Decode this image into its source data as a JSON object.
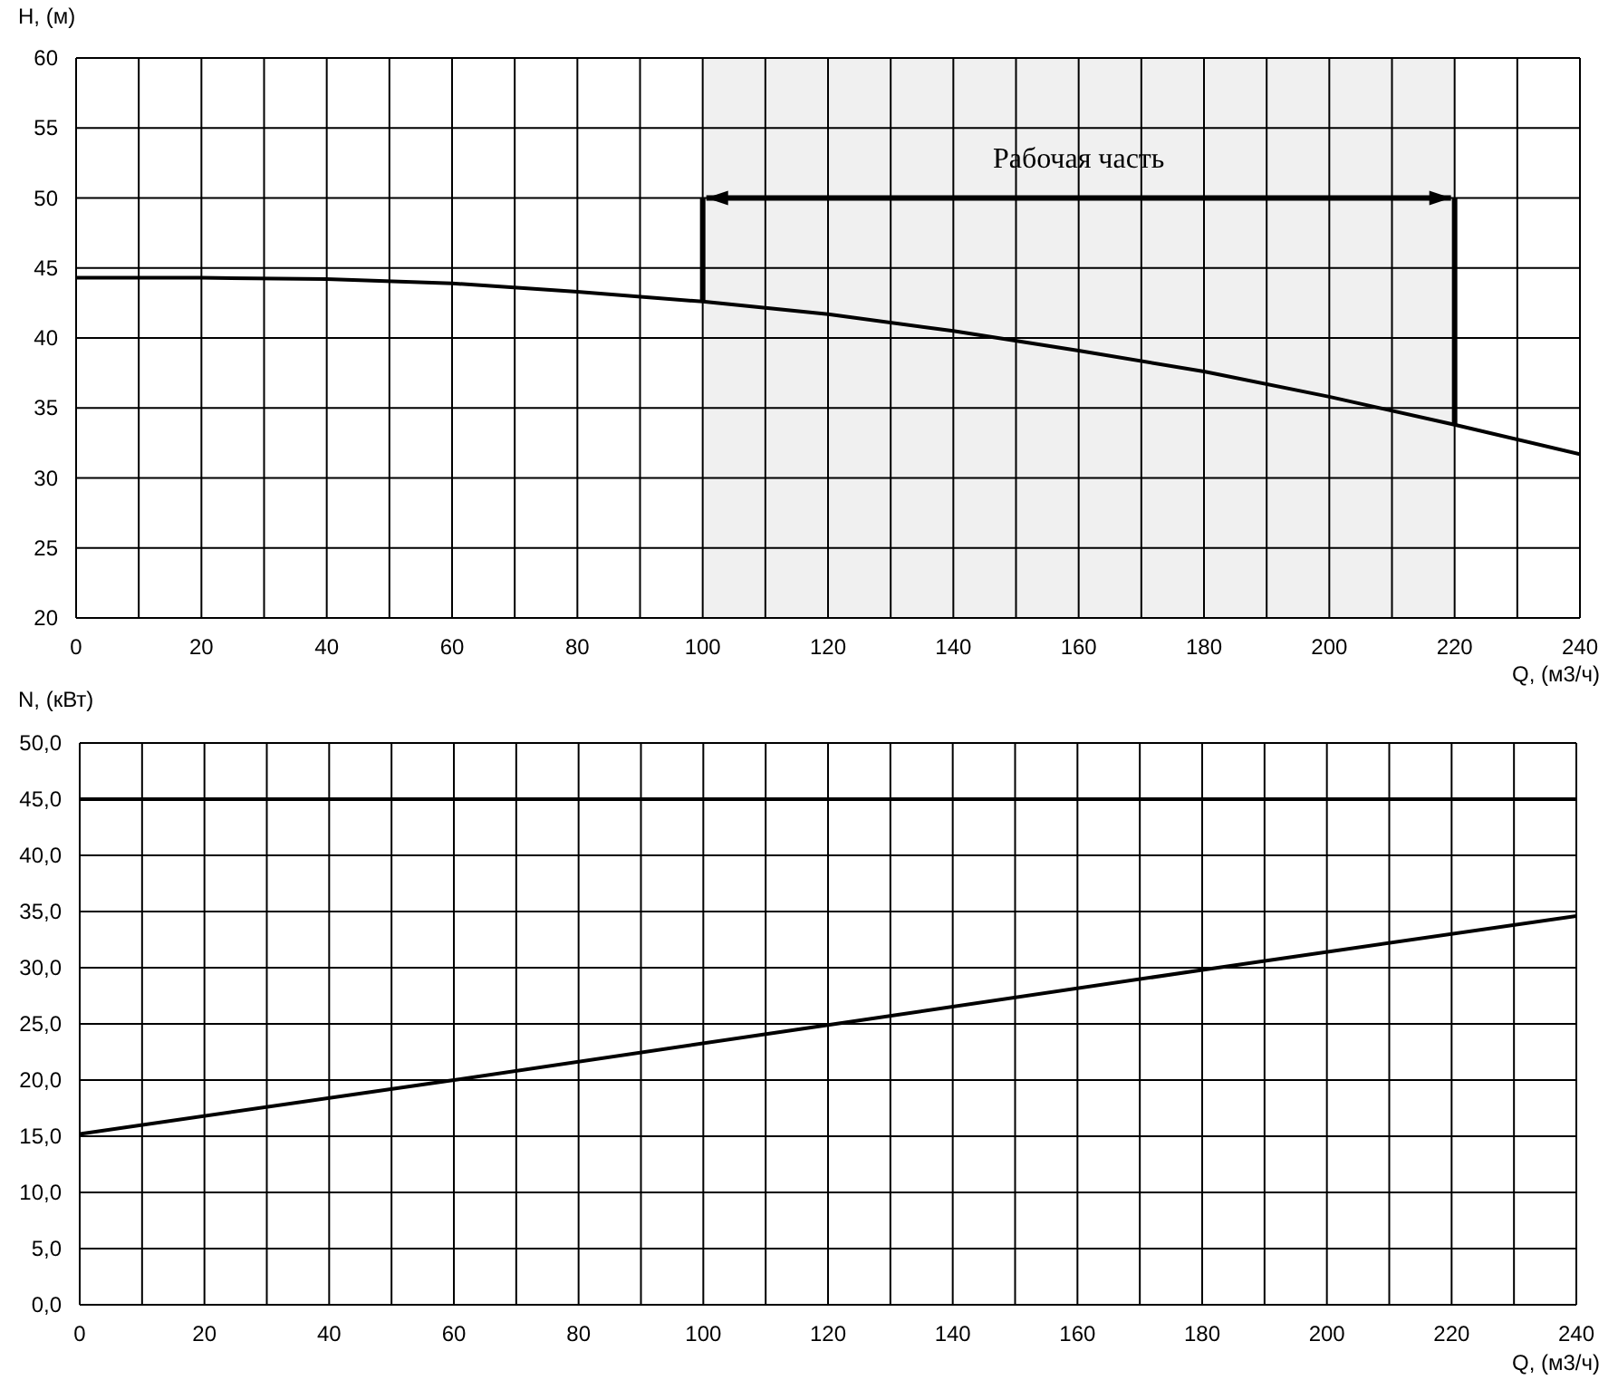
{
  "chart_data": [
    {
      "type": "line",
      "ylabel": "H, (м)",
      "xlabel": "Q, (м3/ч)",
      "x": [
        0,
        20,
        40,
        60,
        80,
        100,
        120,
        140,
        160,
        180,
        200,
        220,
        240
      ],
      "series": [
        {
          "color": "#000000",
          "values": [
            44.3,
            44.3,
            44.2,
            43.9,
            43.3,
            42.6,
            41.7,
            40.5,
            39.1,
            37.6,
            35.8,
            33.8,
            31.7
          ]
        }
      ],
      "xlim": [
        0,
        240
      ],
      "ylim": [
        20,
        60
      ],
      "xticks": [
        0,
        {
          "value": 10,
          "label": null
        },
        20,
        {
          "value": 30,
          "label": null
        },
        40,
        {
          "value": 50,
          "label": null
        },
        60,
        {
          "value": 70,
          "label": null
        },
        80,
        {
          "value": 90,
          "label": null
        },
        100,
        {
          "value": 110,
          "label": null
        },
        120,
        {
          "value": 130,
          "label": null
        },
        140,
        {
          "value": 150,
          "label": null
        },
        160,
        {
          "value": 170,
          "label": null
        },
        180,
        {
          "value": 190,
          "label": null
        },
        200,
        {
          "value": 210,
          "label": null
        },
        220,
        {
          "value": 230,
          "label": null
        },
        240
      ],
      "yticks": [
        20,
        25,
        30,
        35,
        40,
        45,
        50,
        55,
        60
      ],
      "bands": [
        {
          "axis": "x",
          "from": 100,
          "to": 220,
          "label": "Рабочая часть"
        }
      ],
      "grid": true,
      "marker": "none",
      "line_style": "solid"
    },
    {
      "type": "line",
      "ylabel": "N, (кВт)",
      "xlabel": "Q, (м3/ч)",
      "x": [
        0,
        60,
        120,
        180,
        240
      ],
      "series": [
        {
          "color": "#000000",
          "values": [
            15.2,
            20.0,
            24.9,
            29.8,
            34.6
          ]
        }
      ],
      "xlim": [
        0,
        240
      ],
      "ylim": [
        0,
        50
      ],
      "xticks": [
        0,
        {
          "value": 10,
          "label": null
        },
        20,
        {
          "value": 30,
          "label": null
        },
        40,
        {
          "value": 50,
          "label": null
        },
        60,
        {
          "value": 70,
          "label": null
        },
        80,
        {
          "value": 90,
          "label": null
        },
        100,
        {
          "value": 110,
          "label": null
        },
        120,
        {
          "value": 130,
          "label": null
        },
        140,
        {
          "value": 150,
          "label": null
        },
        160,
        {
          "value": 170,
          "label": null
        },
        180,
        {
          "value": 190,
          "label": null
        },
        200,
        {
          "value": 210,
          "label": null
        },
        220,
        {
          "value": 230,
          "label": null
        },
        240
      ],
      "yticks": [
        {
          "value": 0,
          "label": "0,0"
        },
        {
          "value": 5,
          "label": "5,0"
        },
        {
          "value": 10,
          "label": "10,0"
        },
        {
          "value": 15,
          "label": "15,0"
        },
        {
          "value": 20,
          "label": "20,0"
        },
        {
          "value": 25,
          "label": "25,0"
        },
        {
          "value": 30,
          "label": "30,0"
        },
        {
          "value": 35,
          "label": "35,0"
        },
        {
          "value": 40,
          "label": "40,0"
        },
        {
          "value": 45,
          "label": "45,0"
        },
        {
          "value": 50,
          "label": "50,0"
        }
      ],
      "ref_lines": [
        {
          "axis": "y",
          "value": 45,
          "color": "#000000"
        }
      ],
      "grid": true,
      "marker": "none",
      "line_style": "solid"
    }
  ]
}
